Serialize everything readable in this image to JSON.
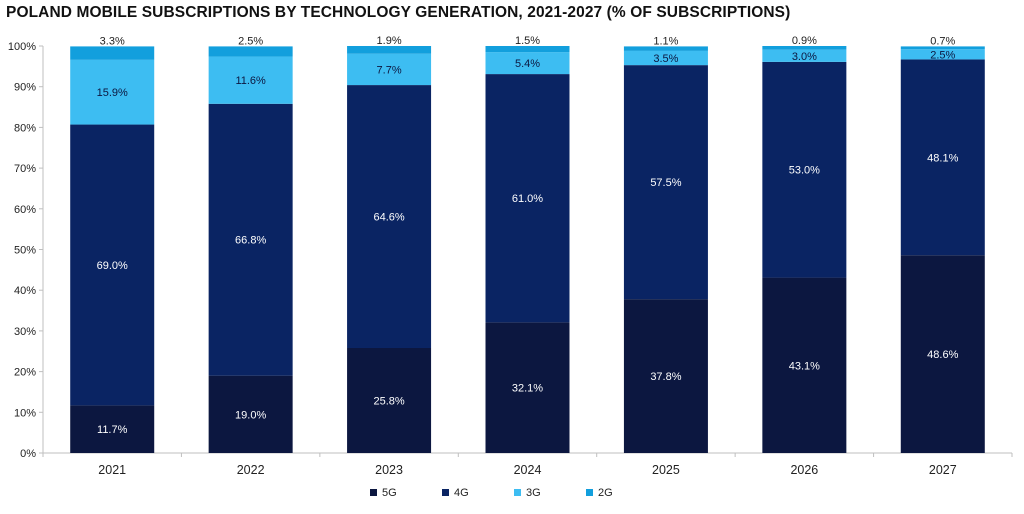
{
  "chart_data": {
    "type": "bar",
    "stacked": true,
    "title": "POLAND MOBILE SUBSCRIPTIONS BY TECHNOLOGY GENERATION, 2021-2027 (% OF SUBSCRIPTIONS)",
    "xlabel": "",
    "ylabel": "",
    "ylim": [
      0,
      100
    ],
    "yticks": [
      "0%",
      "10%",
      "20%",
      "30%",
      "40%",
      "50%",
      "60%",
      "70%",
      "80%",
      "90%",
      "100%"
    ],
    "categories": [
      "2021",
      "2022",
      "2023",
      "2024",
      "2025",
      "2026",
      "2027"
    ],
    "series": [
      {
        "name": "5G",
        "color": "#0c1740",
        "values": [
          11.7,
          19.0,
          25.8,
          32.1,
          37.8,
          43.1,
          48.6
        ],
        "labels": [
          "11.7%",
          "19.0%",
          "25.8%",
          "32.1%",
          "37.8%",
          "43.1%",
          "48.6%"
        ]
      },
      {
        "name": "4G",
        "color": "#0a2463",
        "values": [
          69.0,
          66.8,
          64.6,
          61.0,
          57.5,
          53.0,
          48.1
        ],
        "labels": [
          "69.0%",
          "66.8%",
          "64.6%",
          "61.0%",
          "57.5%",
          "53.0%",
          "48.1%"
        ]
      },
      {
        "name": "3G",
        "color": "#3dbdf2",
        "values": [
          15.9,
          11.6,
          7.7,
          5.4,
          3.5,
          3.0,
          2.5
        ],
        "labels": [
          "15.9%",
          "11.6%",
          "7.7%",
          "5.4%",
          "3.5%",
          "3.0%",
          "2.5%"
        ]
      },
      {
        "name": "2G",
        "color": "#129fdd",
        "values": [
          3.3,
          2.5,
          1.9,
          1.5,
          1.1,
          0.9,
          0.7
        ],
        "labels": [
          "3.3%",
          "2.5%",
          "1.9%",
          "1.5%",
          "1.1%",
          "0.9%",
          "0.7%"
        ]
      }
    ],
    "legend": {
      "position": "bottom"
    },
    "grid": false
  }
}
